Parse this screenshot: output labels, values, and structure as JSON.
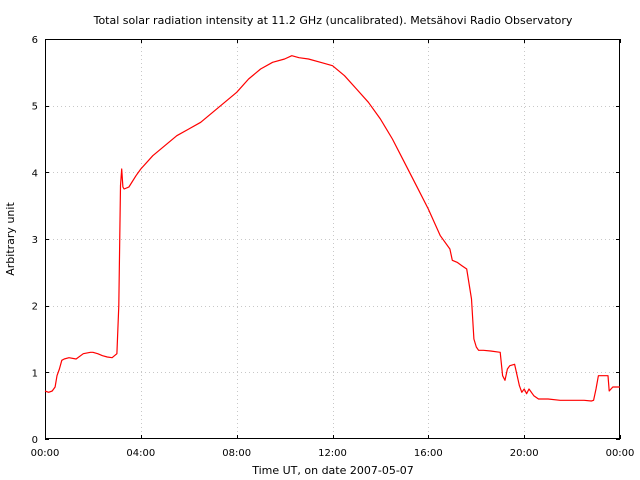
{
  "chart_data": {
    "type": "line",
    "title": "Total solar radiation intensity at 11.2 GHz (uncalibrated). Metsähovi Radio Observatory",
    "xlabel": "Time UT, on date 2007-05-07",
    "ylabel": "Arbitrary unit",
    "xlim": [
      0,
      24
    ],
    "ylim": [
      0,
      6
    ],
    "x_ticks": [
      0,
      4,
      8,
      12,
      16,
      20,
      24
    ],
    "x_tick_labels": [
      "00:00",
      "04:00",
      "08:00",
      "12:00",
      "16:00",
      "20:00",
      "00:00"
    ],
    "y_ticks": [
      0,
      1,
      2,
      3,
      4,
      5,
      6
    ],
    "y_tick_labels": [
      "0",
      "1",
      "2",
      "3",
      "4",
      "5",
      "6"
    ],
    "grid": true,
    "color": "#ff0000",
    "series": [
      {
        "x": [
          0.0,
          0.15,
          0.3,
          0.42,
          0.5,
          0.6,
          0.7,
          0.8,
          1.0,
          1.3,
          1.6,
          1.9,
          2.0,
          2.2,
          2.4,
          2.6,
          2.8,
          3.0,
          3.08,
          3.15,
          3.2,
          3.25,
          3.3,
          3.5,
          3.8,
          4.0,
          4.5,
          5.0,
          5.5,
          6.0,
          6.5,
          7.0,
          7.5,
          8.0,
          8.5,
          9.0,
          9.5,
          10.0,
          10.3,
          10.6,
          11.0,
          11.5,
          12.0,
          12.5,
          13.0,
          13.5,
          14.0,
          14.5,
          15.0,
          15.5,
          16.0,
          16.5,
          16.9,
          17.0,
          17.2,
          17.4,
          17.6,
          17.8,
          17.9,
          18.0,
          18.1,
          18.3,
          18.6,
          19.0,
          19.1,
          19.2,
          19.3,
          19.4,
          19.6,
          19.8,
          19.9,
          20.0,
          20.1,
          20.2,
          20.4,
          20.6,
          21.0,
          21.5,
          22.0,
          22.5,
          22.8,
          22.9,
          23.0,
          23.1,
          23.5,
          23.55,
          23.7,
          24.0
        ],
        "y": [
          0.72,
          0.7,
          0.72,
          0.78,
          0.95,
          1.05,
          1.18,
          1.2,
          1.22,
          1.2,
          1.28,
          1.3,
          1.3,
          1.28,
          1.25,
          1.23,
          1.22,
          1.28,
          2.0,
          3.8,
          4.05,
          3.78,
          3.75,
          3.78,
          3.95,
          4.05,
          4.25,
          4.4,
          4.55,
          4.65,
          4.75,
          4.9,
          5.05,
          5.2,
          5.4,
          5.55,
          5.65,
          5.7,
          5.75,
          5.72,
          5.7,
          5.65,
          5.6,
          5.45,
          5.25,
          5.05,
          4.8,
          4.5,
          4.15,
          3.8,
          3.45,
          3.05,
          2.85,
          2.68,
          2.65,
          2.6,
          2.55,
          2.1,
          1.5,
          1.38,
          1.33,
          1.33,
          1.32,
          1.3,
          0.95,
          0.88,
          1.05,
          1.1,
          1.12,
          0.8,
          0.7,
          0.75,
          0.68,
          0.75,
          0.65,
          0.6,
          0.6,
          0.58,
          0.58,
          0.58,
          0.57,
          0.58,
          0.75,
          0.95,
          0.95,
          0.72,
          0.78,
          0.78
        ]
      }
    ]
  }
}
